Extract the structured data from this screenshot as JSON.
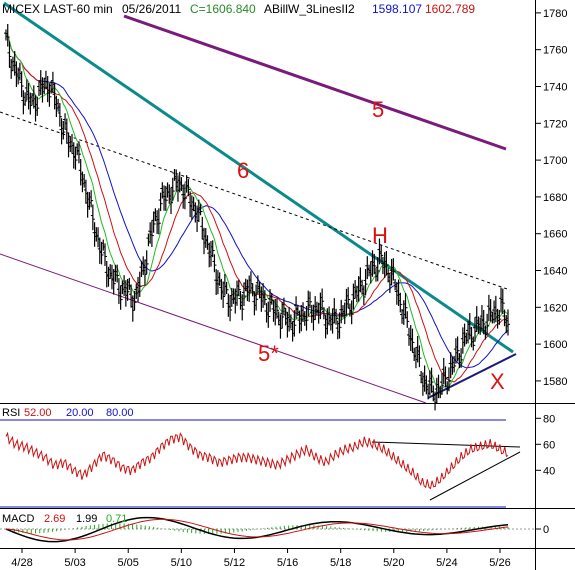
{
  "header": {
    "symbol": "MICEX LAST-60 min",
    "date": "05/26/2011",
    "close": "C=1606.840",
    "indicator": "ABillW_3LinesII2",
    "value1": "1598.107",
    "value2": "1602.789"
  },
  "colors": {
    "price": "#000000",
    "ma_fast": "#22bb22",
    "ma_mid": "#cc1111",
    "ma_slow": "#1111cc",
    "channel_upper": "#7a1a7a",
    "trend_6": "#0a8a8a",
    "channel_lower": "#7a1a7a",
    "support": "#1a1a80",
    "rsi": "#cc1111",
    "rsi_levels": "#1111cc",
    "macd": "#000000",
    "macd_signal": "#cc1111",
    "macd_hist": "#22aa22",
    "annotation": "#dd1111"
  },
  "annotations": [
    "5",
    "6",
    "H",
    "5*",
    "X"
  ],
  "chart_data": [
    {
      "type": "line",
      "title": "MICEX LAST-60 min",
      "y_ticks": [
        1580,
        1600,
        1620,
        1640,
        1660,
        1680,
        1700,
        1720,
        1740,
        1760,
        1780
      ],
      "ylim": [
        1568,
        1787
      ],
      "x_labels": [
        "4/28",
        "5/03",
        "5/05",
        "5/10",
        "5/12",
        "5/16",
        "5/18",
        "5/20",
        "5/24",
        "5/26"
      ],
      "series": [
        {
          "values": [
            1765,
            1750,
            1738,
            1730,
            1738,
            1742,
            1728,
            1712,
            1705,
            1688,
            1668,
            1650,
            1638,
            1632,
            1628,
            1625,
            1645,
            1665,
            1678,
            1684,
            1688,
            1680,
            1672,
            1658,
            1642,
            1628,
            1624,
            1626,
            1630,
            1628,
            1622,
            1618,
            1614,
            1612,
            1616,
            1618,
            1620,
            1614,
            1612,
            1618,
            1625,
            1632,
            1640,
            1646,
            1641,
            1630,
            1614,
            1598,
            1582,
            1574,
            1576,
            1584,
            1594,
            1604,
            1608,
            1612,
            1616,
            1620,
            1608
          ]
        },
        {
          "name": "1602.789"
        },
        {
          "name": "1598.107"
        }
      ]
    },
    {
      "type": "line",
      "title": "RSI",
      "series_label": "RSI",
      "levels": [
        "52.00",
        "20.00",
        "80.00"
      ],
      "y_ticks": [
        40,
        60,
        80
      ],
      "ylim": [
        11,
        91
      ],
      "values": [
        66,
        60,
        58,
        54,
        50,
        44,
        46,
        40,
        36,
        44,
        52,
        48,
        42,
        40,
        46,
        50,
        58,
        64,
        66,
        58,
        52,
        50,
        46,
        48,
        50,
        50,
        48,
        46,
        44,
        48,
        52,
        56,
        50,
        46,
        52,
        56,
        58,
        62,
        60,
        56,
        50,
        44,
        38,
        30,
        28,
        34,
        42,
        50,
        56,
        58,
        60,
        56,
        52
      ]
    },
    {
      "type": "line",
      "title": "MACD",
      "values": [
        "2.69",
        "1.99",
        "0.71"
      ],
      "y_ticks": [
        0
      ]
    }
  ]
}
